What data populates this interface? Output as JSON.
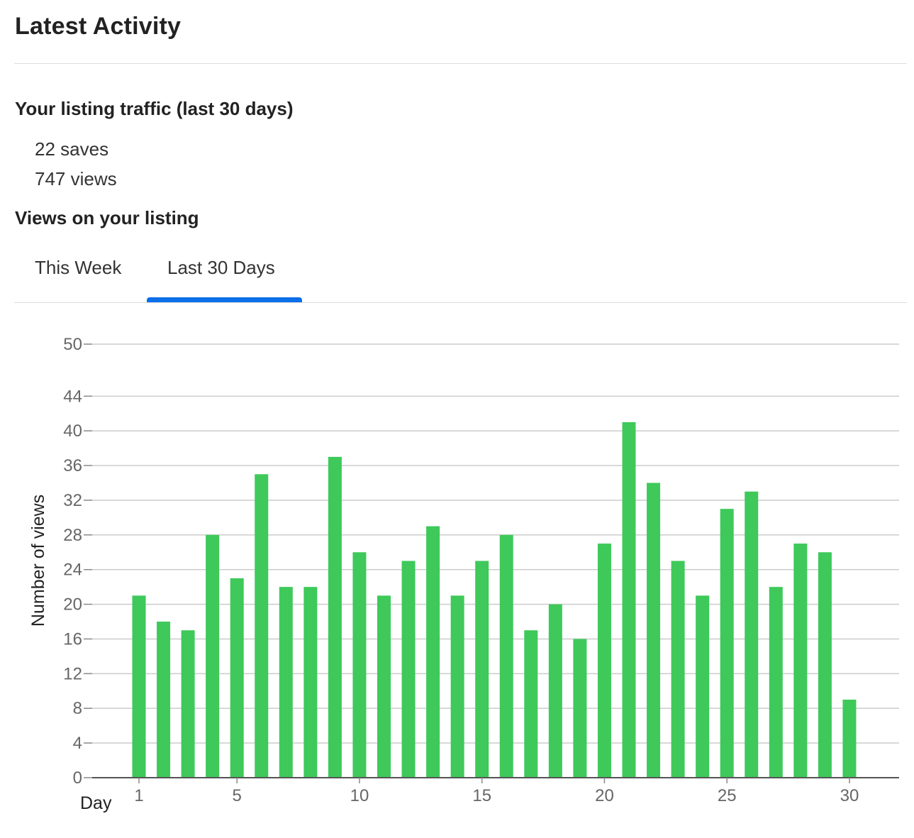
{
  "header": {
    "title": "Latest Activity"
  },
  "traffic": {
    "heading": "Your listing traffic (last 30 days)",
    "saves": "22 saves",
    "views": "747 views"
  },
  "views_section": {
    "heading": "Views on your listing",
    "tabs": [
      {
        "label": "This Week",
        "active": false
      },
      {
        "label": "Last 30 Days",
        "active": true
      }
    ],
    "accent_color": "#0a6fe8"
  },
  "chart_data": {
    "type": "bar",
    "x": [
      1,
      2,
      3,
      4,
      5,
      6,
      7,
      8,
      9,
      10,
      11,
      12,
      13,
      14,
      15,
      16,
      17,
      18,
      19,
      20,
      21,
      22,
      23,
      24,
      25,
      26,
      27,
      28,
      29,
      30
    ],
    "values": [
      21,
      18,
      17,
      28,
      23,
      35,
      22,
      22,
      37,
      26,
      21,
      25,
      29,
      21,
      25,
      28,
      17,
      20,
      16,
      27,
      41,
      34,
      25,
      21,
      31,
      33,
      22,
      27,
      26,
      9
    ],
    "xlabel": "Day",
    "ylabel": "Number of views",
    "ylim": [
      0,
      50
    ],
    "y_ticks": [
      0,
      4,
      8,
      12,
      16,
      20,
      24,
      28,
      32,
      36,
      40,
      44,
      50
    ],
    "x_ticks": [
      1,
      5,
      10,
      15,
      20,
      25,
      30
    ],
    "bar_color": "#3ec95a",
    "grid": true
  }
}
